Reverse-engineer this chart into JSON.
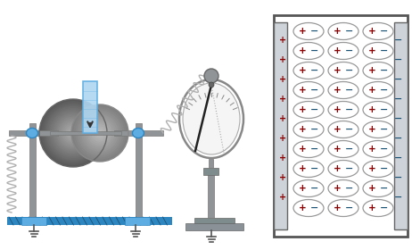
{
  "bg_color": "#ffffff",
  "teal_color": "#5dade2",
  "teal_dark": "#2e86c1",
  "stand_color": "#909497",
  "plate_gray1": "#7f8c8d",
  "plate_gray2": "#aab7b8",
  "plate_gray3": "#566573",
  "coil_color": "#b0b0b0",
  "plus_color": "#8b0000",
  "minus_color": "#1a5276",
  "oval_stroke": "#999999",
  "frame_color": "#555555",
  "ground_color": "#555555",
  "arrow_color": "#333333",
  "electro_frame": "#888888",
  "needle_color": "#222222"
}
